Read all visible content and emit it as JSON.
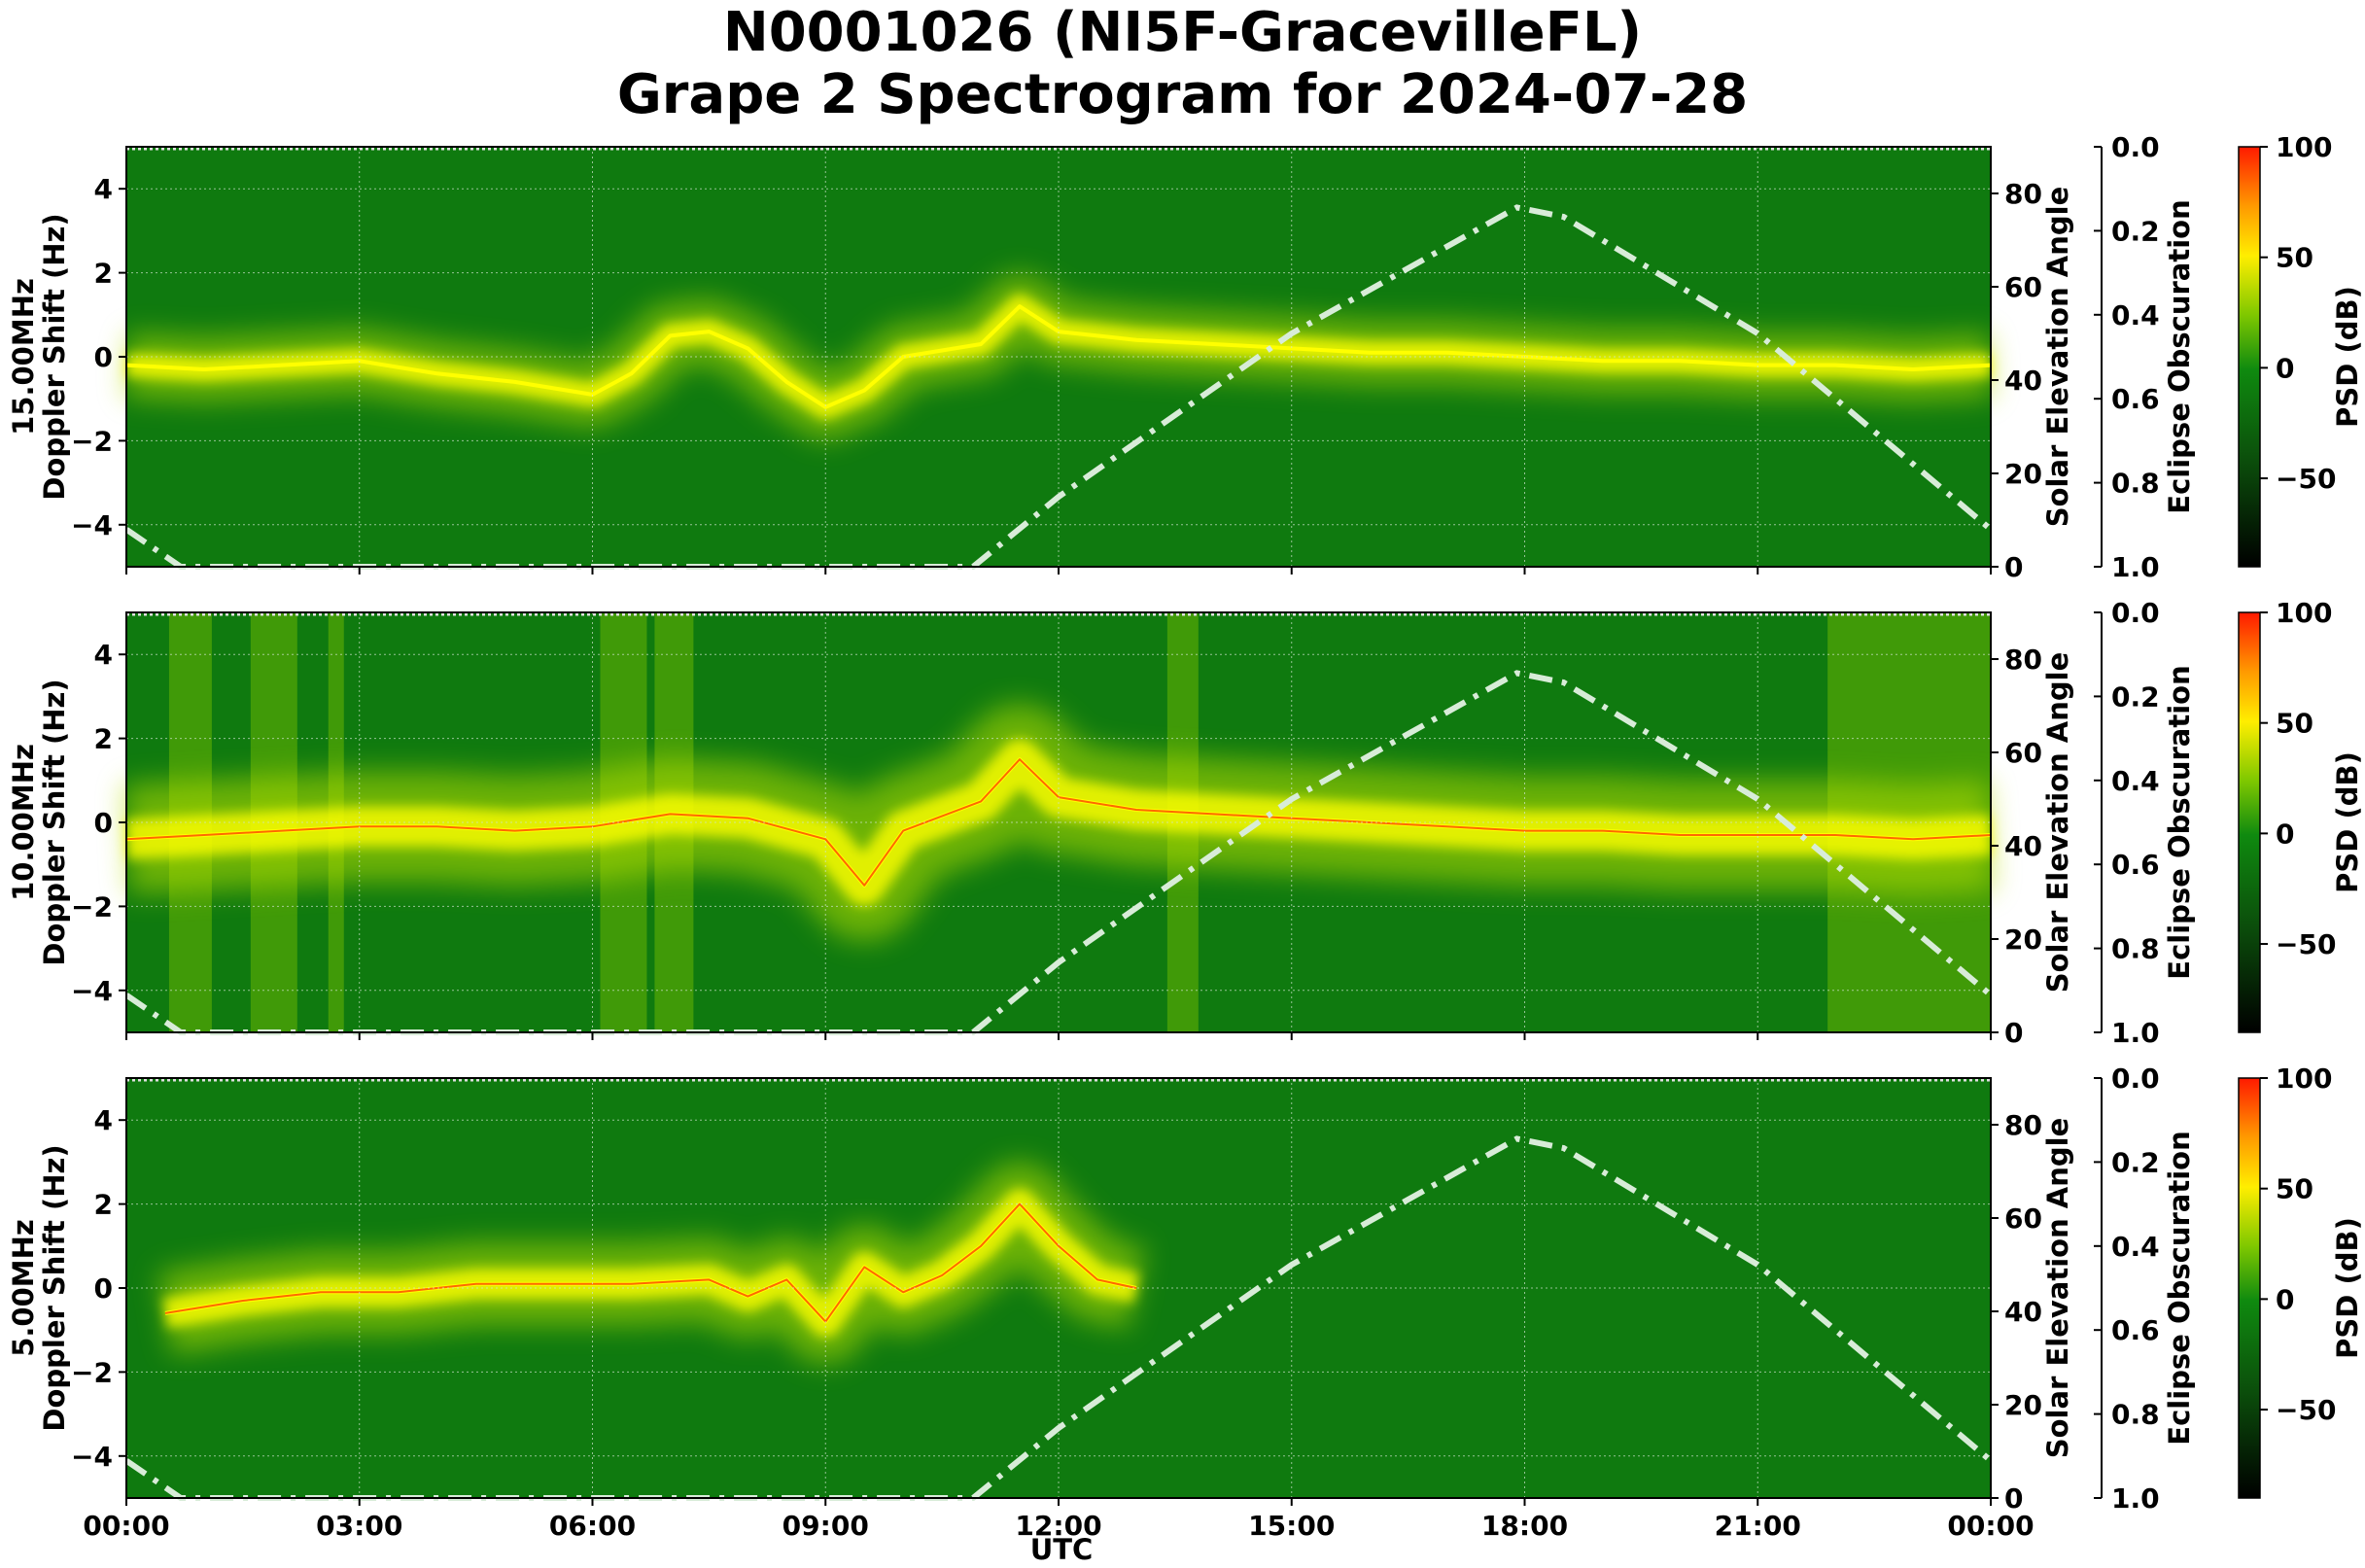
{
  "title_line1": "N0001026 (NI5F-GracevilleFL)",
  "title_line2": "Grape 2 Spectrogram for 2024-07-28",
  "chart_data": {
    "type": "heatmap",
    "colors": {
      "background": "#0f7a0f",
      "signal_mid": "#b8e000",
      "signal_high": "#ffff00",
      "signal_peak": "#ff2a00",
      "solar_curve": "#d8ecd8"
    },
    "shared": {
      "x_ticks": [
        "00:00",
        "03:00",
        "06:00",
        "09:00",
        "12:00",
        "15:00",
        "18:00",
        "21:00",
        "00:00"
      ],
      "x_range_hours": [
        0,
        24
      ],
      "xlabel": "UTC",
      "y_range": [
        -5,
        5
      ],
      "y_ticks": [
        4,
        2,
        0,
        -2,
        -4
      ],
      "y2label": "Solar Elevation Angle",
      "y2_range": [
        0,
        90
      ],
      "y2_ticks": [
        80,
        60,
        40,
        20,
        0
      ],
      "y3label": "Eclipse Obscuration",
      "y3_ticks": [
        "0.0",
        "0.2",
        "0.4",
        "0.6",
        "0.8",
        "1.0"
      ],
      "colorbar_label": "PSD (dB)",
      "colorbar_range": [
        -90,
        100
      ],
      "colorbar_ticks": [
        100,
        50,
        0,
        -50
      ],
      "solar_elevation": {
        "style": "dash-dot",
        "points": [
          [
            0,
            8
          ],
          [
            0.7,
            0
          ],
          [
            10.9,
            0
          ],
          [
            12,
            15
          ],
          [
            15,
            50
          ],
          [
            17.9,
            77
          ],
          [
            18.5,
            75
          ],
          [
            21,
            50
          ],
          [
            24,
            8
          ]
        ]
      }
    },
    "panels": [
      {
        "ylabel_line1": "15.00MHz",
        "ylabel_line2": "Doppler Shift (Hz)",
        "trace": [
          [
            0,
            -0.2
          ],
          [
            1,
            -0.3
          ],
          [
            2,
            -0.2
          ],
          [
            3,
            -0.1
          ],
          [
            4,
            -0.4
          ],
          [
            5,
            -0.6
          ],
          [
            6,
            -0.9
          ],
          [
            6.5,
            -0.4
          ],
          [
            7,
            0.5
          ],
          [
            7.5,
            0.6
          ],
          [
            8,
            0.2
          ],
          [
            8.5,
            -0.6
          ],
          [
            9,
            -1.2
          ],
          [
            9.5,
            -0.8
          ],
          [
            10,
            0.0
          ],
          [
            11,
            0.3
          ],
          [
            11.5,
            1.2
          ],
          [
            12,
            0.6
          ],
          [
            13,
            0.4
          ],
          [
            14,
            0.3
          ],
          [
            15,
            0.2
          ],
          [
            16,
            0.1
          ],
          [
            17,
            0.1
          ],
          [
            18,
            0.0
          ],
          [
            19,
            -0.1
          ],
          [
            20,
            -0.1
          ],
          [
            21,
            -0.2
          ],
          [
            22,
            -0.2
          ],
          [
            23,
            -0.3
          ],
          [
            24,
            -0.2
          ]
        ],
        "spread": 0.7,
        "band_vertical_strips": []
      },
      {
        "ylabel_line1": "10.00MHz",
        "ylabel_line2": "Doppler Shift (Hz)",
        "trace": [
          [
            0,
            -0.4
          ],
          [
            1,
            -0.3
          ],
          [
            2,
            -0.2
          ],
          [
            3,
            -0.1
          ],
          [
            4,
            -0.1
          ],
          [
            5,
            -0.2
          ],
          [
            6,
            -0.1
          ],
          [
            7,
            0.2
          ],
          [
            8,
            0.1
          ],
          [
            9,
            -0.4
          ],
          [
            9.5,
            -1.5
          ],
          [
            10,
            -0.2
          ],
          [
            11,
            0.5
          ],
          [
            11.5,
            1.5
          ],
          [
            12,
            0.6
          ],
          [
            13,
            0.3
          ],
          [
            14,
            0.2
          ],
          [
            15,
            0.1
          ],
          [
            16,
            0.0
          ],
          [
            17,
            -0.1
          ],
          [
            18,
            -0.2
          ],
          [
            19,
            -0.2
          ],
          [
            20,
            -0.3
          ],
          [
            21,
            -0.3
          ],
          [
            22,
            -0.3
          ],
          [
            23,
            -0.4
          ],
          [
            24,
            -0.3
          ]
        ],
        "spread": 1.2,
        "band_vertical_strips": [
          [
            0.55,
            1.1
          ],
          [
            1.6,
            2.2
          ],
          [
            2.6,
            2.8
          ],
          [
            6.1,
            6.7
          ],
          [
            6.8,
            7.3
          ],
          [
            13.4,
            13.8
          ],
          [
            21.9,
            24
          ]
        ]
      },
      {
        "ylabel_line1": "5.00MHz",
        "ylabel_line2": "Doppler Shift (Hz)",
        "trace": [
          [
            0.5,
            -0.6
          ],
          [
            1.5,
            -0.3
          ],
          [
            2.5,
            -0.1
          ],
          [
            3.5,
            -0.1
          ],
          [
            4.5,
            0.1
          ],
          [
            5.5,
            0.1
          ],
          [
            6.5,
            0.1
          ],
          [
            7.5,
            0.2
          ],
          [
            8,
            -0.2
          ],
          [
            8.5,
            0.2
          ],
          [
            9,
            -0.8
          ],
          [
            9.5,
            0.5
          ],
          [
            10,
            -0.1
          ],
          [
            10.5,
            0.3
          ],
          [
            11,
            1.0
          ],
          [
            11.5,
            2.0
          ],
          [
            12,
            1.0
          ],
          [
            12.5,
            0.2
          ],
          [
            13,
            0.0
          ]
        ],
        "spread": 0.9,
        "band_vertical_strips": []
      }
    ]
  }
}
